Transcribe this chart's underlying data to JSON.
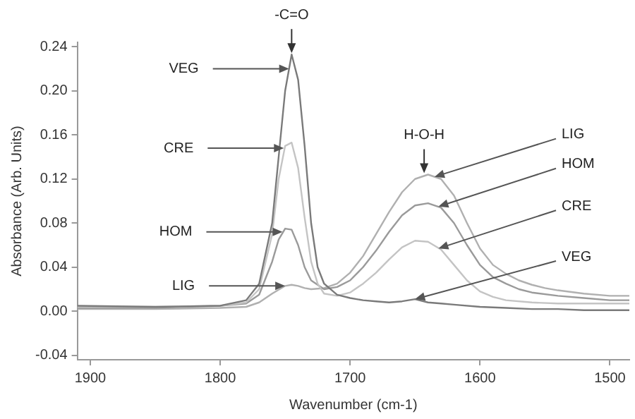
{
  "chart_data": {
    "type": "line",
    "xlabel": "Wavenumber (cm-1)",
    "ylabel": "Absorbance (Arb. Units)",
    "xlim": [
      1910,
      1485
    ],
    "xticks": [
      1900,
      1800,
      1700,
      1600,
      1500
    ],
    "ylim": [
      -0.044,
      0.244
    ],
    "yticks": [
      -0.04,
      {
        "value": 0,
        "label": "0.00"
      },
      0.04,
      0.08,
      0.12,
      0.16,
      {
        "value": 0.2,
        "label": "0.20"
      },
      0.24
    ],
    "grid": false,
    "legend": false,
    "marker": "none",
    "line_style": "solid",
    "series": [
      {
        "color": "#7a7a7a",
        "x": [
          1910,
          1850,
          1800,
          1780,
          1770,
          1760,
          1755,
          1750,
          1745,
          1740,
          1735,
          1730,
          1725,
          1720,
          1710,
          1700,
          1690,
          1680,
          1670,
          1660,
          1650,
          1640,
          1630,
          1620,
          1600,
          1580,
          1560,
          1540,
          1520,
          1500,
          1485
        ],
        "values": [
          0.005,
          0.004,
          0.005,
          0.01,
          0.025,
          0.08,
          0.14,
          0.2,
          0.233,
          0.21,
          0.15,
          0.08,
          0.04,
          0.025,
          0.015,
          0.012,
          0.01,
          0.009,
          0.008,
          0.009,
          0.011,
          0.008,
          0.007,
          0.006,
          0.004,
          0.003,
          0.002,
          0.002,
          0.001,
          0.001,
          0.001
        ]
      },
      {
        "color": "#c4c4c4",
        "x": [
          1910,
          1850,
          1800,
          1780,
          1770,
          1760,
          1755,
          1750,
          1745,
          1740,
          1735,
          1730,
          1725,
          1720,
          1710,
          1700,
          1690,
          1680,
          1670,
          1660,
          1650,
          1640,
          1630,
          1620,
          1610,
          1600,
          1590,
          1580,
          1560,
          1540,
          1500,
          1485
        ],
        "values": [
          0.004,
          0.004,
          0.005,
          0.008,
          0.02,
          0.07,
          0.12,
          0.15,
          0.153,
          0.13,
          0.085,
          0.045,
          0.025,
          0.016,
          0.014,
          0.017,
          0.025,
          0.035,
          0.047,
          0.058,
          0.064,
          0.063,
          0.056,
          0.042,
          0.028,
          0.018,
          0.013,
          0.01,
          0.008,
          0.007,
          0.007,
          0.007
        ]
      },
      {
        "color": "#9a9a9a",
        "x": [
          1910,
          1850,
          1800,
          1780,
          1770,
          1760,
          1755,
          1750,
          1745,
          1740,
          1735,
          1730,
          1720,
          1710,
          1700,
          1690,
          1680,
          1670,
          1660,
          1650,
          1640,
          1630,
          1620,
          1610,
          1600,
          1590,
          1580,
          1570,
          1560,
          1540,
          1520,
          1500,
          1485
        ],
        "values": [
          0.003,
          0.003,
          0.005,
          0.007,
          0.015,
          0.045,
          0.065,
          0.075,
          0.074,
          0.06,
          0.04,
          0.028,
          0.02,
          0.022,
          0.028,
          0.04,
          0.055,
          0.072,
          0.087,
          0.096,
          0.098,
          0.094,
          0.08,
          0.06,
          0.042,
          0.031,
          0.025,
          0.02,
          0.017,
          0.014,
          0.012,
          0.01,
          0.01
        ]
      },
      {
        "color": "#b0b0b0",
        "x": [
          1910,
          1850,
          1800,
          1780,
          1770,
          1760,
          1750,
          1745,
          1740,
          1735,
          1730,
          1720,
          1710,
          1700,
          1690,
          1680,
          1670,
          1660,
          1650,
          1640,
          1630,
          1620,
          1610,
          1600,
          1590,
          1580,
          1570,
          1560,
          1550,
          1540,
          1520,
          1500,
          1485
        ],
        "values": [
          0.002,
          0.002,
          0.003,
          0.004,
          0.008,
          0.016,
          0.023,
          0.024,
          0.023,
          0.021,
          0.02,
          0.021,
          0.025,
          0.035,
          0.05,
          0.07,
          0.09,
          0.108,
          0.12,
          0.124,
          0.12,
          0.105,
          0.08,
          0.057,
          0.042,
          0.034,
          0.028,
          0.024,
          0.021,
          0.019,
          0.016,
          0.014,
          0.014
        ]
      }
    ],
    "annotations": [
      {
        "text": "-C=O",
        "x": 1745,
        "y": 0.233
      },
      {
        "text": "H-O-H",
        "x": 1643,
        "y": 0.124
      },
      {
        "text": "VEG",
        "x": 1747,
        "y": 0.22
      },
      {
        "text": "CRE",
        "x": 1751,
        "y": 0.148
      },
      {
        "text": "HOM",
        "x": 1752,
        "y": 0.072
      },
      {
        "text": "LIG",
        "x": 1750,
        "y": 0.023
      },
      {
        "text": "LIG",
        "x": 1635,
        "y": 0.122
      },
      {
        "text": "HOM",
        "x": 1632,
        "y": 0.095
      },
      {
        "text": "CRE",
        "x": 1632,
        "y": 0.057
      },
      {
        "text": "VEG",
        "x": 1650,
        "y": 0.011
      }
    ]
  }
}
